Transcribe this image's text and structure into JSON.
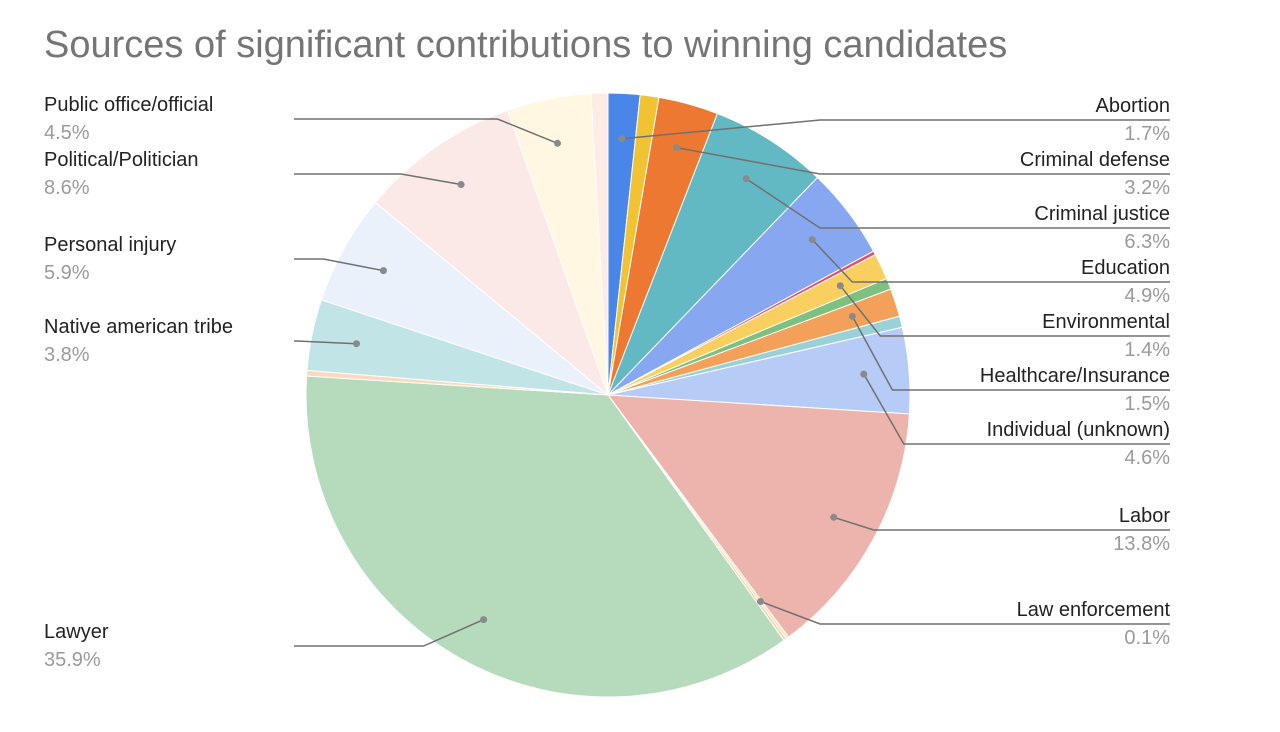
{
  "chart_data": {
    "type": "pie",
    "title": "Sources of significant contributions to winning candidates",
    "start_angle_deg": 0,
    "slices": [
      {
        "label": "Abortion",
        "pct_label": "1.7%",
        "value": 1.7,
        "color": "#4a86e8",
        "side": "right"
      },
      {
        "label": "",
        "pct_label": "",
        "value": 1.0,
        "color": "#f1c232",
        "side": "none"
      },
      {
        "label": "Criminal defense",
        "pct_label": "3.2%",
        "value": 3.2,
        "color": "#ed7832",
        "side": "right"
      },
      {
        "label": "Criminal justice",
        "pct_label": "6.3%",
        "value": 6.3,
        "color": "#62b9c4",
        "side": "right"
      },
      {
        "label": "Education",
        "pct_label": "4.9%",
        "value": 4.9,
        "color": "#87a8f0",
        "side": "right"
      },
      {
        "label": "",
        "pct_label": "",
        "value": 0.2,
        "color": "#ea4c6b",
        "side": "none"
      },
      {
        "label": "Environmental",
        "pct_label": "1.4%",
        "value": 1.4,
        "color": "#f9d060",
        "side": "right"
      },
      {
        "label": "",
        "pct_label": "",
        "value": 0.6,
        "color": "#7ec07f",
        "side": "none"
      },
      {
        "label": "Healthcare/Insurance",
        "pct_label": "1.5%",
        "value": 1.5,
        "color": "#f3a05a",
        "side": "right"
      },
      {
        "label": "",
        "pct_label": "",
        "value": 0.6,
        "color": "#9ad0d8",
        "side": "none"
      },
      {
        "label": "Individual (unknown)",
        "pct_label": "4.6%",
        "value": 4.6,
        "color": "#b6cbf5",
        "side": "right"
      },
      {
        "label": "Labor",
        "pct_label": "13.8%",
        "value": 13.8,
        "color": "#ecb4ad",
        "side": "right"
      },
      {
        "label": "Law enforcement",
        "pct_label": "0.1%",
        "value": 0.15,
        "color": "#f9e4a9",
        "side": "right"
      },
      {
        "label": "",
        "pct_label": "",
        "value": 0.15,
        "color": "#f8d0b0",
        "side": "none"
      },
      {
        "label": "Lawyer",
        "pct_label": "35.9%",
        "value": 35.9,
        "color": "#b6dbbc",
        "side": "left"
      },
      {
        "label": "",
        "pct_label": "",
        "value": 0.3,
        "color": "#fad9bf",
        "side": "none"
      },
      {
        "label": "Native american tribe",
        "pct_label": "3.8%",
        "value": 3.8,
        "color": "#c1e4e7",
        "side": "left"
      },
      {
        "label": "Personal injury",
        "pct_label": "5.9%",
        "value": 5.9,
        "color": "#eaf1fb",
        "side": "left"
      },
      {
        "label": "Political/Politician",
        "pct_label": "8.6%",
        "value": 8.6,
        "color": "#fbe9e7",
        "side": "left"
      },
      {
        "label": "Public office/official",
        "pct_label": "4.5%",
        "value": 4.5,
        "color": "#fff7e1",
        "side": "left"
      },
      {
        "label": "",
        "pct_label": "",
        "value": 0.9,
        "color": "#fdebe5",
        "side": "none"
      }
    ]
  }
}
